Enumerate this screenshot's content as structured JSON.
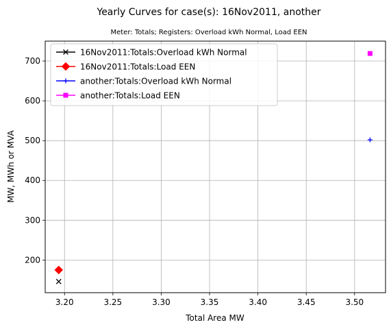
{
  "chart_data": {
    "type": "scatter",
    "title": "Yearly Curves for case(s): 16Nov2011, another",
    "subtitle": "Meter: Totals; Registers: Overload kWh Normal, Load EEN",
    "xlabel": "Total Area MW",
    "ylabel": "MW, MWh or MVA",
    "xlim": [
      3.18,
      3.532
    ],
    "ylim": [
      118,
      750
    ],
    "xticks": [
      "3.20",
      "3.25",
      "3.30",
      "3.35",
      "3.40",
      "3.45",
      "3.50"
    ],
    "xtick_values": [
      3.2,
      3.25,
      3.3,
      3.35,
      3.4,
      3.45,
      3.5
    ],
    "yticks": [
      "200",
      "300",
      "400",
      "500",
      "600",
      "700"
    ],
    "ytick_values": [
      200,
      300,
      400,
      500,
      600,
      700
    ],
    "grid": true,
    "legend_position": "top-left",
    "series": [
      {
        "name": "16Nov2011:Totals:Overload kWh Normal",
        "color": "#000000",
        "marker": "x",
        "points": [
          {
            "x": 3.194,
            "y": 146
          }
        ]
      },
      {
        "name": "16Nov2011:Totals:Load EEN",
        "color": "#ff0000",
        "marker": "diamond",
        "points": [
          {
            "x": 3.194,
            "y": 175
          }
        ]
      },
      {
        "name": "another:Totals:Overload kWh Normal",
        "color": "#0000ff",
        "marker": "plus",
        "points": [
          {
            "x": 3.516,
            "y": 502
          }
        ]
      },
      {
        "name": "another:Totals:Load EEN",
        "color": "#ff00ff",
        "marker": "square",
        "points": [
          {
            "x": 3.516,
            "y": 719
          }
        ]
      }
    ]
  }
}
